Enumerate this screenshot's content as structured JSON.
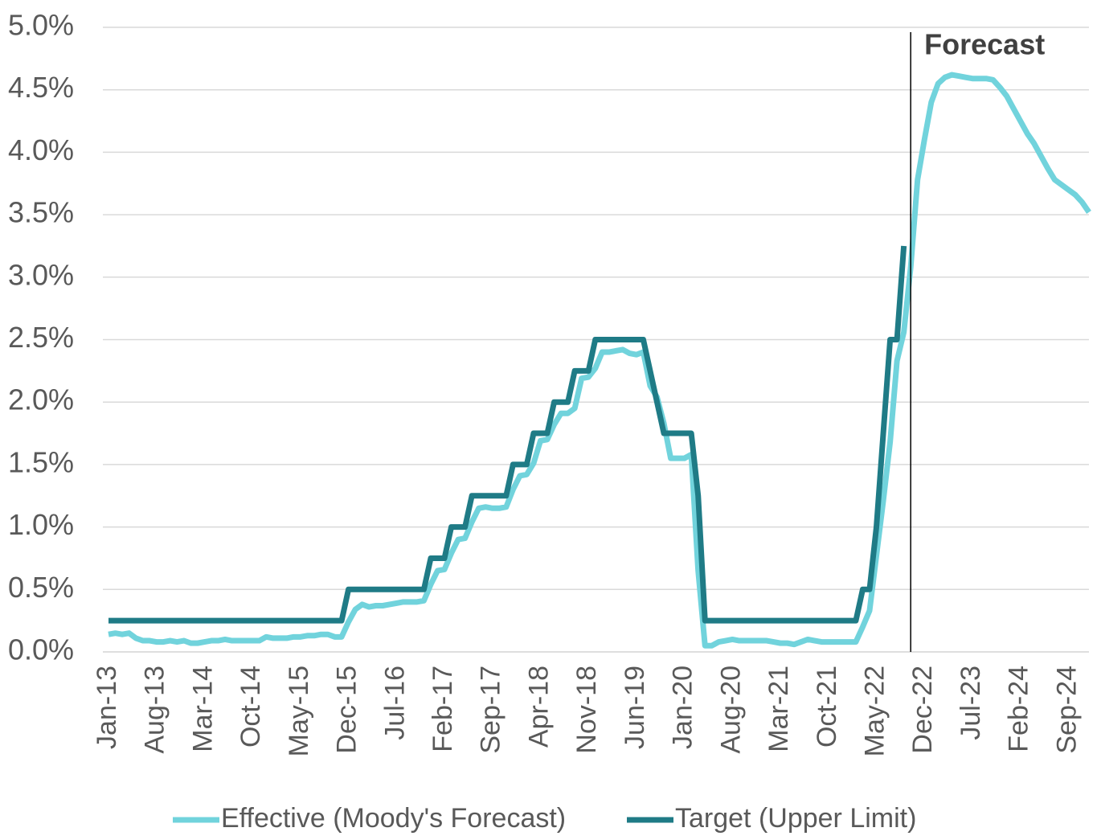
{
  "chart_data": {
    "type": "line",
    "categories": [
      "Jan-13",
      null,
      null,
      null,
      null,
      null,
      null,
      "Aug-13",
      null,
      null,
      null,
      null,
      null,
      null,
      "Mar-14",
      null,
      null,
      null,
      null,
      null,
      null,
      "Oct-14",
      null,
      null,
      null,
      null,
      null,
      null,
      "May-15",
      null,
      null,
      null,
      null,
      null,
      null,
      "Dec-15",
      null,
      null,
      null,
      null,
      null,
      null,
      "Jul-16",
      null,
      null,
      null,
      null,
      null,
      null,
      "Feb-17",
      null,
      null,
      null,
      null,
      null,
      null,
      "Sep-17",
      null,
      null,
      null,
      null,
      null,
      null,
      "Apr-18",
      null,
      null,
      null,
      null,
      null,
      null,
      "Nov-18",
      null,
      null,
      null,
      null,
      null,
      null,
      "Jun-19",
      null,
      null,
      null,
      null,
      null,
      null,
      "Jan-20",
      null,
      null,
      null,
      null,
      null,
      null,
      "Aug-20",
      null,
      null,
      null,
      null,
      null,
      null,
      "Mar-21",
      null,
      null,
      null,
      null,
      null,
      null,
      "Oct-21",
      null,
      null,
      null,
      null,
      null,
      null,
      "May-22",
      null,
      null,
      null,
      null,
      null,
      null,
      "Dec-22",
      null,
      null,
      null,
      null,
      null,
      null,
      "Jul-23",
      null,
      null,
      null,
      null,
      null,
      null,
      "Feb-24",
      null,
      null,
      null,
      null,
      null,
      null,
      "Sep-24",
      null,
      null,
      null
    ],
    "series": [
      {
        "name": "Effective (Moody's Forecast)",
        "color": "#71d3dc",
        "values": [
          0.14,
          0.15,
          0.14,
          0.15,
          0.11,
          0.09,
          0.09,
          0.08,
          0.08,
          0.09,
          0.08,
          0.09,
          0.07,
          0.07,
          0.08,
          0.09,
          0.09,
          0.1,
          0.09,
          0.09,
          0.09,
          0.09,
          0.09,
          0.12,
          0.11,
          0.11,
          0.11,
          0.12,
          0.12,
          0.13,
          0.13,
          0.14,
          0.14,
          0.12,
          0.12,
          0.24,
          0.34,
          0.38,
          0.36,
          0.37,
          0.37,
          0.38,
          0.39,
          0.4,
          0.4,
          0.4,
          0.41,
          0.54,
          0.65,
          0.66,
          0.79,
          0.9,
          0.91,
          1.04,
          1.15,
          1.16,
          1.15,
          1.15,
          1.16,
          1.3,
          1.41,
          1.42,
          1.51,
          1.69,
          1.7,
          1.82,
          1.91,
          1.91,
          1.95,
          2.19,
          2.2,
          2.27,
          2.4,
          2.4,
          2.41,
          2.42,
          2.39,
          2.38,
          2.4,
          2.13,
          2.04,
          1.83,
          1.55,
          1.55,
          1.55,
          1.58,
          0.65,
          0.05,
          0.05,
          0.08,
          0.09,
          0.1,
          0.09,
          0.09,
          0.09,
          0.09,
          0.09,
          0.08,
          0.07,
          0.07,
          0.06,
          0.08,
          0.1,
          0.09,
          0.08,
          0.08,
          0.08,
          0.08,
          0.08,
          0.08,
          0.2,
          0.33,
          0.77,
          1.21,
          1.68,
          2.33,
          2.56,
          3.08,
          3.78,
          4.1,
          4.4,
          4.55,
          4.6,
          4.62,
          4.61,
          4.6,
          4.59,
          4.59,
          4.59,
          4.58,
          4.52,
          4.45,
          4.35,
          4.25,
          4.15,
          4.07,
          3.97,
          3.87,
          3.78,
          3.74,
          3.7,
          3.66,
          3.6,
          3.52
        ]
      },
      {
        "name": "Target (Upper Limit)",
        "color": "#1f7b86",
        "values": [
          0.25,
          0.25,
          0.25,
          0.25,
          0.25,
          0.25,
          0.25,
          0.25,
          0.25,
          0.25,
          0.25,
          0.25,
          0.25,
          0.25,
          0.25,
          0.25,
          0.25,
          0.25,
          0.25,
          0.25,
          0.25,
          0.25,
          0.25,
          0.25,
          0.25,
          0.25,
          0.25,
          0.25,
          0.25,
          0.25,
          0.25,
          0.25,
          0.25,
          0.25,
          0.25,
          0.5,
          0.5,
          0.5,
          0.5,
          0.5,
          0.5,
          0.5,
          0.5,
          0.5,
          0.5,
          0.5,
          0.5,
          0.75,
          0.75,
          0.75,
          1,
          1,
          1,
          1.25,
          1.25,
          1.25,
          1.25,
          1.25,
          1.25,
          1.5,
          1.5,
          1.5,
          1.75,
          1.75,
          1.75,
          2,
          2,
          2,
          2.25,
          2.25,
          2.25,
          2.5,
          2.5,
          2.5,
          2.5,
          2.5,
          2.5,
          2.5,
          2.5,
          2.25,
          2,
          1.75,
          1.75,
          1.75,
          1.75,
          1.75,
          1.25,
          0.25,
          0.25,
          0.25,
          0.25,
          0.25,
          0.25,
          0.25,
          0.25,
          0.25,
          0.25,
          0.25,
          0.25,
          0.25,
          0.25,
          0.25,
          0.25,
          0.25,
          0.25,
          0.25,
          0.25,
          0.25,
          0.25,
          0.25,
          0.5,
          0.5,
          1,
          1.75,
          2.5,
          2.5,
          3.25,
          null,
          null,
          null,
          null,
          null,
          null,
          null,
          null,
          null,
          null,
          null,
          null,
          null,
          null,
          null,
          null,
          null,
          null,
          null,
          null,
          null,
          null,
          null,
          null,
          null,
          null,
          null
        ]
      }
    ],
    "ylim": [
      0,
      5
    ],
    "yticks": [
      {
        "value": 0,
        "label": "0.0%"
      },
      {
        "value": 0.5,
        "label": "0.5%"
      },
      {
        "value": 1,
        "label": "1.0%"
      },
      {
        "value": 1.5,
        "label": "1.5%"
      },
      {
        "value": 2,
        "label": "2.0%"
      },
      {
        "value": 2.5,
        "label": "2.5%"
      },
      {
        "value": 3,
        "label": "3.0%"
      },
      {
        "value": 3.5,
        "label": "3.5%"
      },
      {
        "value": 4,
        "label": "4.0%"
      },
      {
        "value": 4.5,
        "label": "4.5%"
      },
      {
        "value": 5,
        "label": "5.0%"
      }
    ],
    "grid": true,
    "legend": "bottom",
    "annotation": {
      "text": "Forecast",
      "at": 117
    }
  }
}
